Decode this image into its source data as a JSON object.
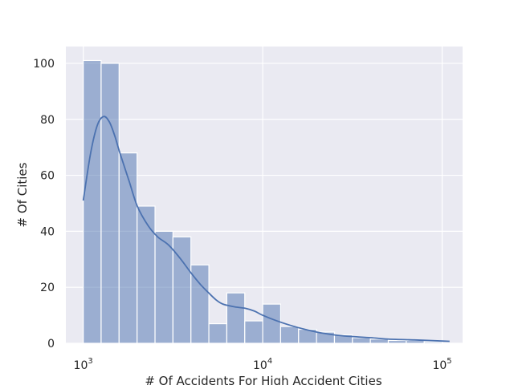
{
  "chart_data": {
    "type": "bar",
    "subtype": "histogram-with-kde",
    "title": "",
    "xlabel": "# Of Accidents For High Accident Cities",
    "ylabel": "# Of Cities",
    "x_scale": "log",
    "xlim": [
      800,
      130000
    ],
    "ylim": [
      0,
      106
    ],
    "x_ticks": [
      {
        "value": 1000,
        "base": "10",
        "exp": "3"
      },
      {
        "value": 10000,
        "base": "10",
        "exp": "4"
      },
      {
        "value": 100000,
        "base": "10",
        "exp": "5"
      }
    ],
    "y_ticks": [
      0,
      20,
      40,
      60,
      80,
      100
    ],
    "grid": true,
    "background_color": "#eaeaf2",
    "bar_color": "#4c72b0",
    "bar_opacity": 0.5,
    "kde_color": "#4c72b0",
    "bins": [
      {
        "x0": 1000,
        "x1": 1258,
        "count": 101
      },
      {
        "x0": 1258,
        "x1": 1584,
        "count": 100
      },
      {
        "x0": 1584,
        "x1": 1995,
        "count": 68
      },
      {
        "x0": 1995,
        "x1": 2512,
        "count": 49
      },
      {
        "x0": 2512,
        "x1": 3162,
        "count": 40
      },
      {
        "x0": 3162,
        "x1": 3981,
        "count": 38
      },
      {
        "x0": 3981,
        "x1": 5012,
        "count": 28
      },
      {
        "x0": 5012,
        "x1": 6310,
        "count": 7
      },
      {
        "x0": 6310,
        "x1": 7943,
        "count": 18
      },
      {
        "x0": 7943,
        "x1": 10000,
        "count": 8
      },
      {
        "x0": 10000,
        "x1": 12589,
        "count": 14
      },
      {
        "x0": 12589,
        "x1": 15849,
        "count": 6
      },
      {
        "x0": 15849,
        "x1": 19953,
        "count": 5
      },
      {
        "x0": 19953,
        "x1": 25119,
        "count": 4
      },
      {
        "x0": 25119,
        "x1": 31623,
        "count": 3
      },
      {
        "x0": 31623,
        "x1": 39811,
        "count": 2
      },
      {
        "x0": 39811,
        "x1": 50119,
        "count": 1.5
      },
      {
        "x0": 50119,
        "x1": 63096,
        "count": 1
      },
      {
        "x0": 63096,
        "x1": 79433,
        "count": 1
      },
      {
        "x0": 79433,
        "x1": 100000,
        "count": 0.5
      }
    ],
    "kde": {
      "x": [
        1000,
        1100,
        1200,
        1300,
        1400,
        1500,
        1600,
        1800,
        2000,
        2300,
        2600,
        3000,
        3500,
        4000,
        4500,
        5000,
        5500,
        6000,
        7000,
        8000,
        9000,
        10000,
        12000,
        15000,
        20000,
        25000,
        30000,
        40000,
        50000,
        70000,
        100000,
        110000
      ],
      "y": [
        51,
        68,
        78,
        81,
        79,
        74,
        68,
        58,
        49,
        42,
        38,
        35,
        30,
        25,
        21,
        18,
        15.5,
        14,
        13,
        12.5,
        11.5,
        10,
        8,
        6,
        4,
        3,
        2.5,
        2,
        1.5,
        1.2,
        0.8,
        0.7
      ]
    }
  }
}
